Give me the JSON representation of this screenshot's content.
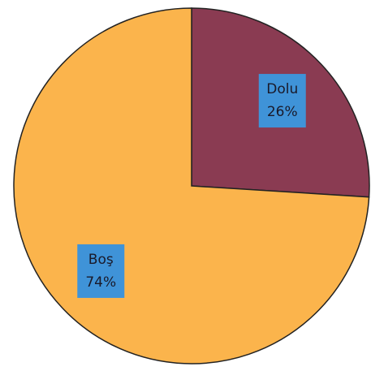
{
  "chart_data": {
    "type": "pie",
    "categories": [
      "Dolu",
      "Boş"
    ],
    "values": [
      26,
      74
    ],
    "value_labels": [
      "26%",
      "74%"
    ],
    "colors": [
      "#8a3b52",
      "#fbb44c"
    ],
    "label_box_color": "#3f93d8"
  }
}
